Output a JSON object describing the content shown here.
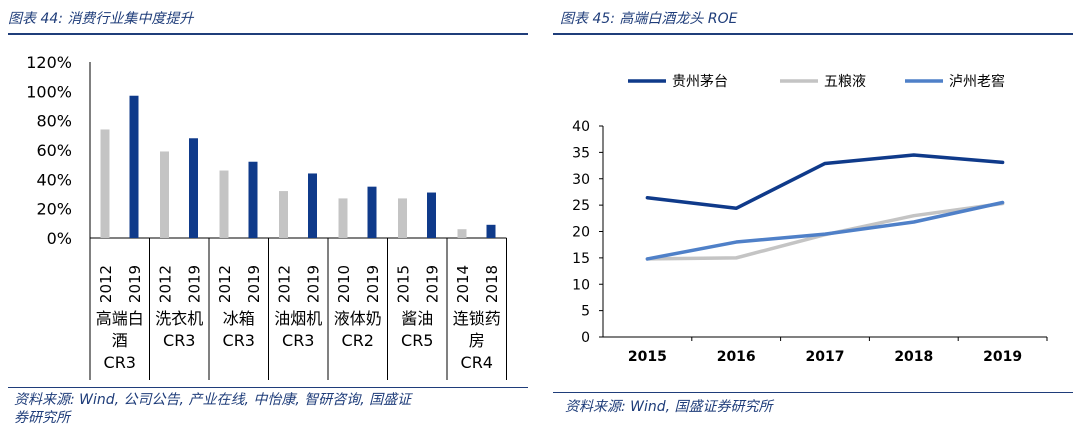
{
  "left": {
    "title": "图表 44: 消费行业集中度提升",
    "source": "资料来源: Wind, 公司公告, 产业在线, 中怡康, 智研咨询, 国盛证",
    "source2": "券研究所",
    "colors": {
      "before": "#c4c4c4",
      "after": "#0f3a8a"
    },
    "chart_data": {
      "type": "bar",
      "ylim": [
        0,
        120
      ],
      "yticks": [
        "0%",
        "20%",
        "40%",
        "60%",
        "80%",
        "100%",
        "120%"
      ],
      "groups": [
        {
          "label": [
            "高端白",
            "酒"
          ],
          "cr": "CR3",
          "years": [
            "2012",
            "2019"
          ],
          "values": [
            74,
            97
          ]
        },
        {
          "label": [
            "洗衣机"
          ],
          "cr": "CR3",
          "years": [
            "2012",
            "2019"
          ],
          "values": [
            59,
            68
          ]
        },
        {
          "label": [
            "冰箱"
          ],
          "cr": "CR3",
          "years": [
            "2012",
            "2019"
          ],
          "values": [
            46,
            52
          ]
        },
        {
          "label": [
            "油烟机"
          ],
          "cr": "CR3",
          "years": [
            "2012",
            "2019"
          ],
          "values": [
            32,
            44
          ]
        },
        {
          "label": [
            "液体奶"
          ],
          "cr": "CR2",
          "years": [
            "2010",
            "2019"
          ],
          "values": [
            27,
            35
          ]
        },
        {
          "label": [
            "酱油"
          ],
          "cr": "CR5",
          "years": [
            "2015",
            "2019"
          ],
          "values": [
            27,
            31
          ]
        },
        {
          "label": [
            "连锁药",
            "房"
          ],
          "cr": "CR4",
          "years": [
            "2014",
            "2018"
          ],
          "values": [
            6,
            9
          ]
        }
      ]
    }
  },
  "right": {
    "title": "图表 45: 高端白酒龙头 ROE",
    "source": "资料来源: Wind, 国盛证券研究所",
    "chart_data": {
      "type": "line",
      "x": [
        "2015",
        "2016",
        "2017",
        "2018",
        "2019"
      ],
      "ylim": [
        0,
        40
      ],
      "yticks": [
        "0",
        "5",
        "10",
        "15",
        "20",
        "25",
        "30",
        "35",
        "40"
      ],
      "series": [
        {
          "name": "贵州茅台",
          "color": "#0f3a8a",
          "values": [
            26.4,
            24.4,
            32.9,
            34.5,
            33.1
          ]
        },
        {
          "name": "五粮液",
          "color": "#c4c4c4",
          "values": [
            14.8,
            15.0,
            19.4,
            23.0,
            25.3
          ]
        },
        {
          "name": "泸州老窖",
          "color": "#4f80c8",
          "values": [
            14.8,
            18.0,
            19.5,
            21.8,
            25.5
          ]
        }
      ]
    }
  }
}
